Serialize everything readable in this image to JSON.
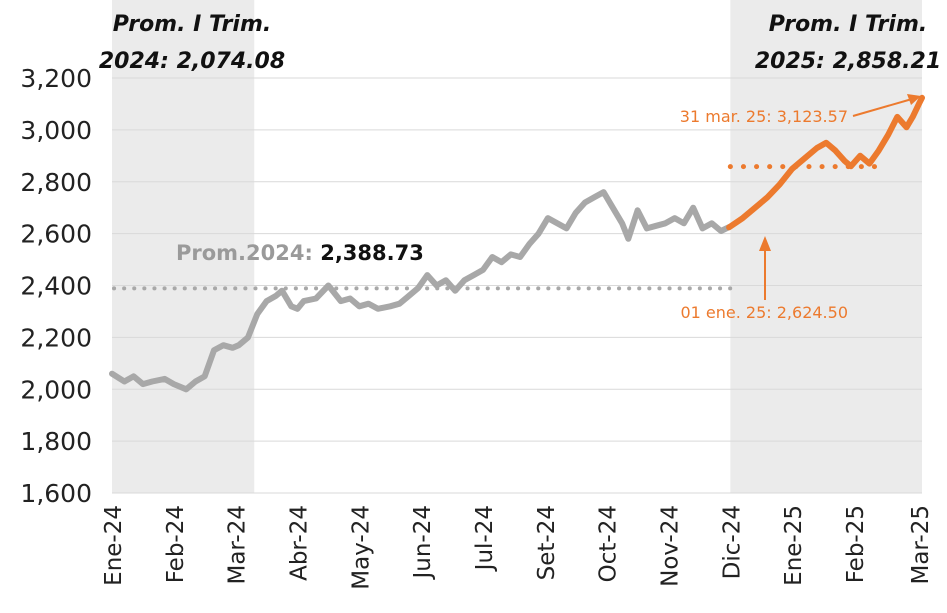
{
  "chart_data": {
    "type": "line",
    "title": "",
    "xlabel": "",
    "ylabel": "",
    "ylim": [
      1600,
      3200
    ],
    "yticks": [
      1600,
      1800,
      2000,
      2200,
      2400,
      2600,
      2800,
      3000,
      3200
    ],
    "ytick_labels": [
      "1,600",
      "1,800",
      "2,000",
      "2,200",
      "2,400",
      "2,600",
      "2,800",
      "3,000",
      "3,200"
    ],
    "x_range_months": [
      0,
      15
    ],
    "categories": [
      "Ene-24",
      "Feb-24",
      "Mar-24",
      "Abr-24",
      "May-24",
      "Jun-24",
      "Jul-24",
      "Set-24",
      "Oct-24",
      "Nov-24",
      "Dic-24",
      "Ene-25",
      "Feb-25",
      "Mar-25"
    ],
    "category_positions": [
      0,
      1,
      2,
      3,
      4,
      5,
      6,
      7,
      8,
      9,
      10,
      11,
      12,
      13.05
    ],
    "grid": true,
    "shaded_periods": [
      {
        "name": "I Trim. 2024",
        "x_start": 0,
        "x_end": 2.3
      },
      {
        "name": "I Trim. 2025",
        "x_start": 10.0,
        "x_end": 13.1
      }
    ],
    "series": [
      {
        "name": "2024",
        "color": "#a8a8a8",
        "x": [
          0,
          0.2,
          0.35,
          0.5,
          0.65,
          0.85,
          1.0,
          1.2,
          1.35,
          1.5,
          1.65,
          1.8,
          1.95,
          2.05,
          2.2,
          2.35,
          2.5,
          2.65,
          2.75,
          2.9,
          3.0,
          3.1,
          3.3,
          3.5,
          3.7,
          3.85,
          4.0,
          4.15,
          4.3,
          4.5,
          4.65,
          4.8,
          4.95,
          5.1,
          5.25,
          5.4,
          5.55,
          5.7,
          5.85,
          6.0,
          6.15,
          6.3,
          6.45,
          6.6,
          6.75,
          6.9,
          7.05,
          7.2,
          7.35,
          7.5,
          7.65,
          7.8,
          7.95,
          8.1,
          8.25,
          8.35,
          8.5,
          8.65,
          8.8,
          8.95,
          9.1,
          9.25,
          9.4,
          9.55,
          9.7,
          9.85,
          9.98
        ],
        "values": [
          2060,
          2030,
          2050,
          2020,
          2030,
          2040,
          2020,
          2000,
          2030,
          2050,
          2150,
          2170,
          2160,
          2170,
          2200,
          2290,
          2340,
          2360,
          2380,
          2320,
          2310,
          2340,
          2350,
          2400,
          2340,
          2350,
          2320,
          2330,
          2310,
          2320,
          2330,
          2360,
          2390,
          2440,
          2400,
          2420,
          2380,
          2420,
          2440,
          2460,
          2510,
          2490,
          2520,
          2510,
          2560,
          2600,
          2660,
          2640,
          2620,
          2680,
          2720,
          2740,
          2760,
          2700,
          2640,
          2580,
          2690,
          2620,
          2630,
          2640,
          2660,
          2640,
          2700,
          2620,
          2640,
          2610,
          2625
        ]
      },
      {
        "name": "2025",
        "color": "#ec7a2e",
        "x": [
          9.98,
          10.2,
          10.4,
          10.6,
          10.8,
          11.0,
          11.2,
          11.4,
          11.55,
          11.7,
          11.85,
          11.95,
          12.1,
          12.25,
          12.4,
          12.55,
          12.7,
          12.85,
          12.95,
          13.05,
          13.1
        ],
        "values": [
          2624.5,
          2660,
          2700,
          2740,
          2790,
          2850,
          2890,
          2930,
          2950,
          2920,
          2880,
          2860,
          2900,
          2870,
          2920,
          2980,
          3050,
          3010,
          3050,
          3100,
          3123.57
        ]
      }
    ],
    "reference_lines": [
      {
        "name": "Prom.2024",
        "value": 2388.73,
        "x_start": 0,
        "x_end": 10.0,
        "color": "#a8a8a8"
      },
      {
        "name": "Prom. I Trim. 2025",
        "value": 2858.21,
        "x_start": 10.0,
        "x_end": 13.1,
        "color": "#ec7a2e"
      }
    ],
    "annotations": {
      "trim2024_line1": "Prom. I Trim.",
      "trim2024_line2": "2024: 2,074.08",
      "trim2025_line1": "Prom. I Trim.",
      "trim2025_line2": "2025: 2,858.21",
      "prom2024_label": "Prom.2024: ",
      "prom2024_value": "2,388.73",
      "start_label": "01 ene. 25: 2,624.50",
      "end_label": "31 mar. 25: 3,123.57"
    }
  }
}
